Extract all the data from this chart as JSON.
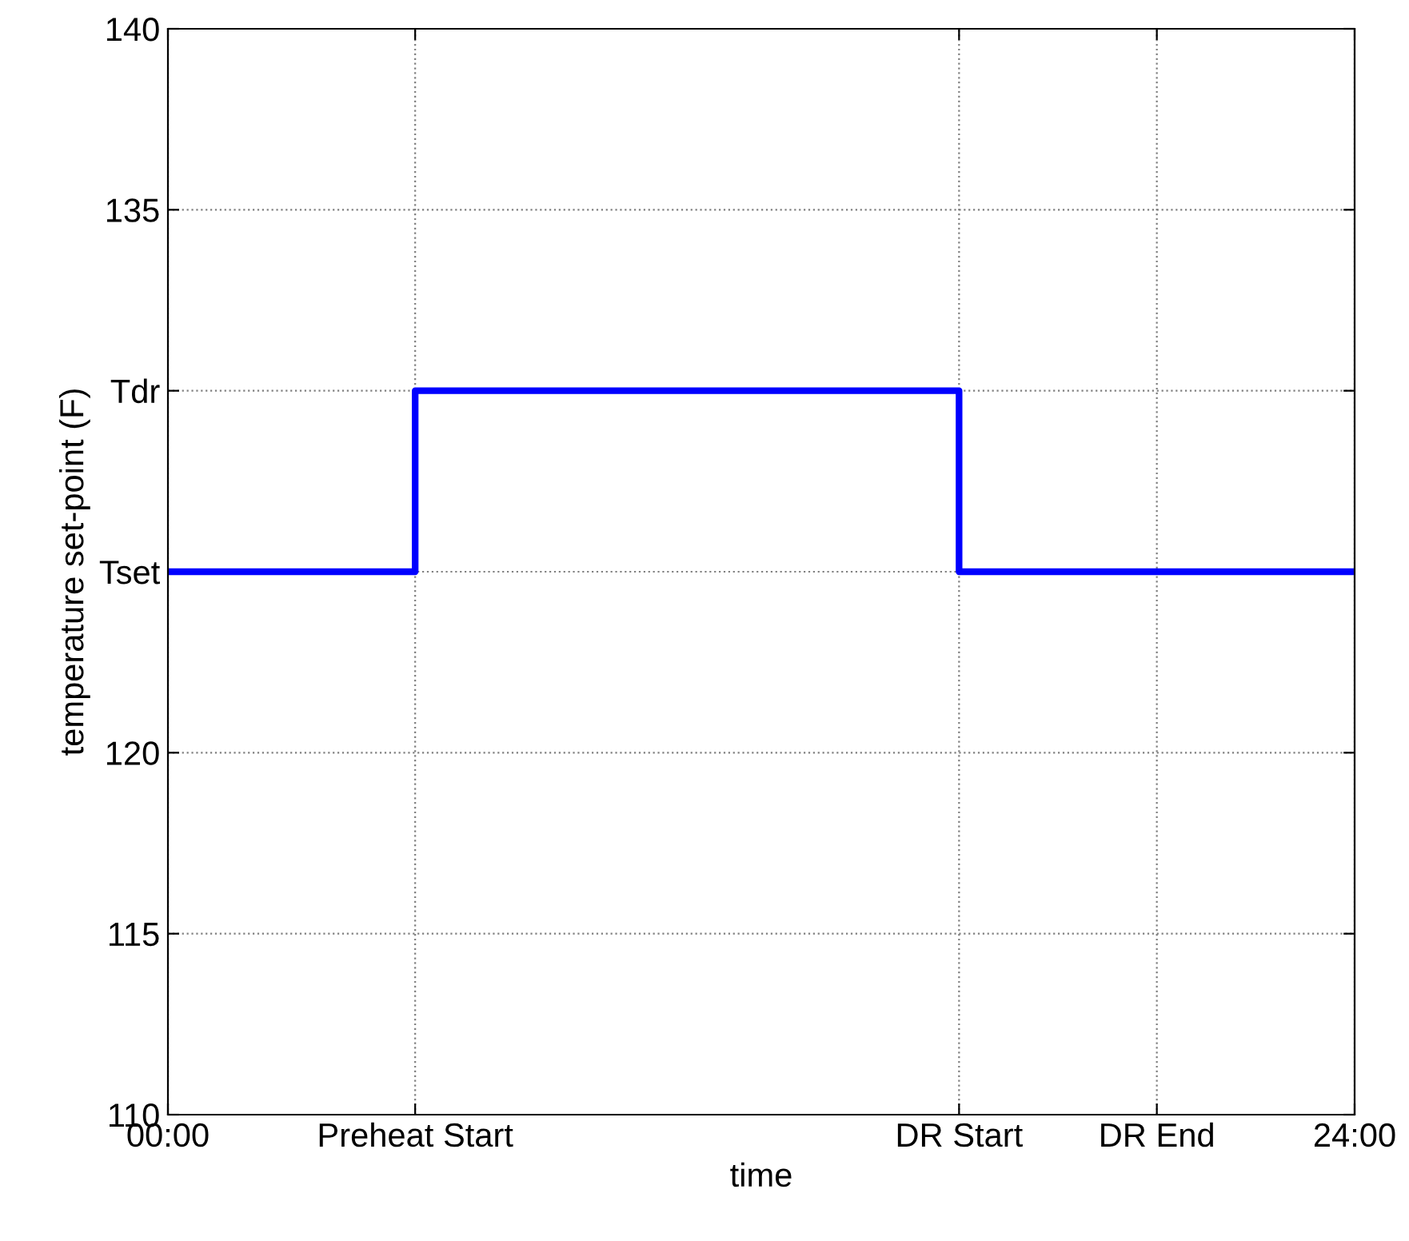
{
  "chart_data": {
    "type": "step",
    "xlabel": "time",
    "ylabel": "temperature set-point (F)",
    "x": [
      0,
      5,
      16,
      24
    ],
    "series": [
      {
        "color": "#0000ff",
        "values": [
          125,
          130,
          125,
          125
        ]
      }
    ],
    "xlim": [
      0,
      24
    ],
    "xticks": [
      {
        "value": 0,
        "label": "00:00"
      },
      {
        "value": 5,
        "label": "Preheat Start"
      },
      {
        "value": 16,
        "label": "DR Start"
      },
      {
        "value": 20,
        "label": "DR End"
      },
      {
        "value": 24,
        "label": "24:00"
      }
    ],
    "ylim": [
      110,
      140
    ],
    "yticks": [
      110,
      115,
      120,
      {
        "value": 125,
        "label": "Tset"
      },
      {
        "value": 130,
        "label": "Tdr"
      },
      135,
      140
    ],
    "grid": true,
    "line_style": "solid",
    "marker": "none",
    "legend": false
  }
}
